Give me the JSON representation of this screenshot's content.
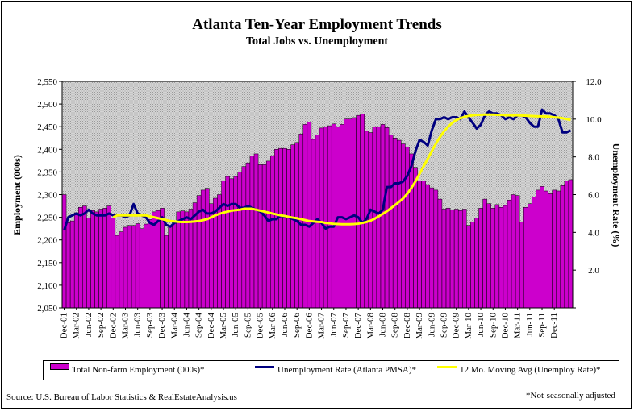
{
  "title": "Atlanta Ten-Year Employment Trends",
  "subtitle": "Total Jobs vs. Unemployment",
  "source": "Source: U.S. Bureau of Labor Statistics & RealEstateAnalysis.us",
  "note": "*Not-seasonally adjusted",
  "colors": {
    "bars": "#cc00cc",
    "unemployment": "#000080",
    "moving_avg": "#ffff00",
    "plot_bg": "#c0c0c0"
  },
  "legend": [
    {
      "label": "Total Non-farm Employment (000s)*",
      "kind": "bar"
    },
    {
      "label": "Unemployment Rate (Atlanta PMSA)*",
      "kind": "line"
    },
    {
      "label": "12 Mo. Moving Avg (Unemploy Rate)*",
      "kind": "line"
    }
  ],
  "chart_data": {
    "type": "bar",
    "xlabel": "",
    "ylabel": "Employment (000s)",
    "y2label": "Unemployment Rate (%)",
    "ylim": [
      2050,
      2550
    ],
    "y2lim": [
      0,
      12
    ],
    "yticks": [
      "2,050",
      "2,100",
      "2,150",
      "2,200",
      "2,250",
      "2,300",
      "2,350",
      "2,400",
      "2,450",
      "2,500",
      "2,550"
    ],
    "y2ticks": [
      "-",
      "2.0",
      "4.0",
      "6.0",
      "8.0",
      "10.0",
      "12.0"
    ],
    "grid": false,
    "legend_position": "bottom",
    "xtick_labels": [
      "Dec-01",
      "Mar-02",
      "Jun-02",
      "Sep-02",
      "Dec-02",
      "Mar-03",
      "Jun-03",
      "Sep-03",
      "Dec-03",
      "Mar-04",
      "Jun-04",
      "Sep-04",
      "Dec-04",
      "Mar-05",
      "Jun-05",
      "Sep-05",
      "Dec-05",
      "Mar-06",
      "Jun-06",
      "Sep-06",
      "Dec-06",
      "Mar-07",
      "Jun-07",
      "Sep-07",
      "Dec-07",
      "Mar-08",
      "Jun-08",
      "Sep-08",
      "Dec-08",
      "Mar-09",
      "Jun-09",
      "Sep-09",
      "Dec-09",
      "Mar-10",
      "Jun-10",
      "Sep-10",
      "Dec-10",
      "Mar-11",
      "Jun-11",
      "Sep-11",
      "Dec-11"
    ],
    "series": [
      {
        "name": "Total Non-farm Employment (000s)*",
        "kind": "bar",
        "axis": "left",
        "values": [
          2300,
          2238,
          2242,
          2260,
          2272,
          2275,
          2248,
          2265,
          2262,
          2268,
          2270,
          2275,
          2248,
          2210,
          2218,
          2228,
          2232,
          2232,
          2236,
          2225,
          2235,
          2245,
          2262,
          2265,
          2270,
          2210,
          2232,
          2242,
          2262,
          2264,
          2262,
          2268,
          2282,
          2298,
          2310,
          2314,
          2280,
          2292,
          2300,
          2330,
          2340,
          2335,
          2340,
          2350,
          2362,
          2370,
          2385,
          2390,
          2366,
          2366,
          2374,
          2386,
          2400,
          2402,
          2402,
          2400,
          2410,
          2415,
          2434,
          2455,
          2460,
          2422,
          2432,
          2447,
          2450,
          2452,
          2456,
          2450,
          2455,
          2467,
          2467,
          2470,
          2475,
          2478,
          2440,
          2437,
          2450,
          2450,
          2455,
          2448,
          2432,
          2425,
          2420,
          2412,
          2405,
          2390,
          2360,
          2330,
          2330,
          2322,
          2315,
          2310,
          2290,
          2268,
          2270,
          2266,
          2268,
          2265,
          2268,
          2232,
          2240,
          2248,
          2270,
          2290,
          2280,
          2270,
          2278,
          2272,
          2276,
          2288,
          2300,
          2298,
          2240,
          2272,
          2280,
          2295,
          2310,
          2318,
          2308,
          2302,
          2310,
          2308,
          2320,
          2330,
          2333
        ]
      },
      {
        "name": "Unemployment Rate (Atlanta PMSA)*",
        "kind": "line",
        "axis": "right",
        "values": [
          4.1,
          4.8,
          4.9,
          5.0,
          4.9,
          5.0,
          5.2,
          5.0,
          4.9,
          4.9,
          4.9,
          5.0,
          4.9,
          4.9,
          4.9,
          4.8,
          4.9,
          5.5,
          5.0,
          4.9,
          4.8,
          4.5,
          4.4,
          4.6,
          4.8,
          4.4,
          4.3,
          4.5,
          4.6,
          4.7,
          4.8,
          4.7,
          4.9,
          5.1,
          5.2,
          5.0,
          5.0,
          5.1,
          5.3,
          5.5,
          5.4,
          5.5,
          5.5,
          5.3,
          5.3,
          5.4,
          5.3,
          5.2,
          5.1,
          4.9,
          4.6,
          4.7,
          4.7,
          4.9,
          4.8,
          4.8,
          4.7,
          4.6,
          4.4,
          4.4,
          4.3,
          4.5,
          4.7,
          4.5,
          4.2,
          4.3,
          4.3,
          4.8,
          4.8,
          4.7,
          4.8,
          4.9,
          4.8,
          4.5,
          4.7,
          5.2,
          5.1,
          5.0,
          5.2,
          6.4,
          6.4,
          6.6,
          6.6,
          6.7,
          7.0,
          7.5,
          8.3,
          8.9,
          8.8,
          8.6,
          9.4,
          10.0,
          10.0,
          10.1,
          10.0,
          10.1,
          10.1,
          10.0,
          10.4,
          10.1,
          9.8,
          9.5,
          9.7,
          10.2,
          10.4,
          10.3,
          10.3,
          10.2,
          10.0,
          10.1,
          10.0,
          10.2,
          10.2,
          10.1,
          9.8,
          9.6,
          9.6,
          10.5,
          10.3,
          10.3,
          10.2,
          10.0,
          9.3,
          9.3,
          9.4
        ]
      },
      {
        "name": "12 Mo. Moving Avg (Unemploy Rate)*",
        "kind": "line",
        "axis": "right",
        "values": [
          null,
          null,
          null,
          null,
          null,
          null,
          null,
          null,
          null,
          null,
          null,
          null,
          4.8,
          4.9,
          4.9,
          4.9,
          4.9,
          4.9,
          4.9,
          4.9,
          4.9,
          4.85,
          4.8,
          4.75,
          4.7,
          4.65,
          4.6,
          4.58,
          4.56,
          4.55,
          4.55,
          4.56,
          4.58,
          4.6,
          4.65,
          4.7,
          4.8,
          4.9,
          4.98,
          5.05,
          5.1,
          5.15,
          5.18,
          5.2,
          5.25,
          5.25,
          5.25,
          5.2,
          5.15,
          5.1,
          5.05,
          5.0,
          4.95,
          4.9,
          4.87,
          4.82,
          4.78,
          4.75,
          4.7,
          4.65,
          4.6,
          4.58,
          4.56,
          4.55,
          4.5,
          4.48,
          4.45,
          4.44,
          4.43,
          4.43,
          4.43,
          4.44,
          4.46,
          4.5,
          4.55,
          4.62,
          4.72,
          4.85,
          4.98,
          5.12,
          5.28,
          5.45,
          5.62,
          5.8,
          6.05,
          6.35,
          6.7,
          7.1,
          7.5,
          7.9,
          8.3,
          8.7,
          9.05,
          9.35,
          9.6,
          9.8,
          9.95,
          10.05,
          10.12,
          10.17,
          10.2,
          10.22,
          10.23,
          10.24,
          10.24,
          10.24,
          10.23,
          10.22,
          10.21,
          10.2,
          10.2,
          10.2,
          10.19,
          10.18,
          10.17,
          10.16,
          10.15,
          10.15,
          10.14,
          10.12,
          10.1,
          10.08,
          10.05,
          10.0,
          9.96
        ]
      }
    ]
  }
}
